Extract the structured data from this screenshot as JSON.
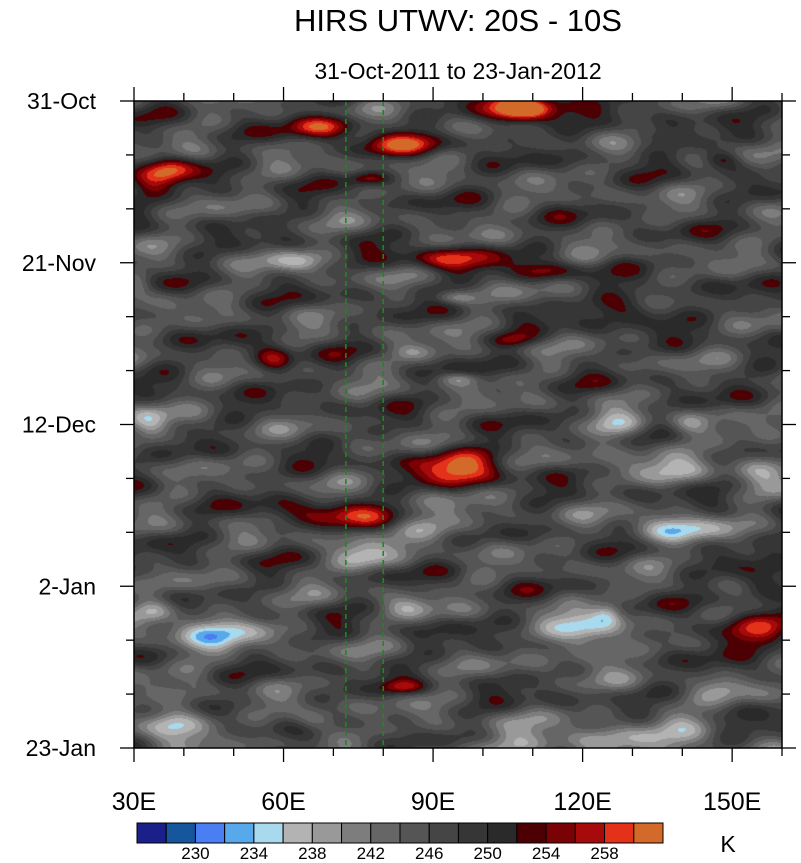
{
  "chart_data": {
    "type": "heatmap",
    "title": "HIRS UTWV: 20S - 10S",
    "subtitle": "31-Oct-2011 to 23-Jan-2012",
    "xlabel": "",
    "ylabel": "",
    "x_range": [
      30,
      160
    ],
    "x_ticks": [
      {
        "value": 30,
        "label": "30E"
      },
      {
        "value": 60,
        "label": "60E"
      },
      {
        "value": 90,
        "label": "90E"
      },
      {
        "value": 120,
        "label": "120E"
      },
      {
        "value": 150,
        "label": "150E"
      }
    ],
    "y_range_days": [
      0,
      84
    ],
    "y_ticks": [
      {
        "value": 0,
        "label": "31-Oct"
      },
      {
        "value": 21,
        "label": "21-Nov"
      },
      {
        "value": 42,
        "label": "12-Dec"
      },
      {
        "value": 63,
        "label": "2-Jan"
      },
      {
        "value": 84,
        "label": "23-Jan"
      }
    ],
    "reference_lines_lon": [
      72.5,
      80
    ],
    "colorbar": {
      "unit": "K",
      "levels": [
        228,
        230,
        232,
        234,
        236,
        238,
        240,
        242,
        244,
        246,
        248,
        250,
        252,
        254,
        256,
        258,
        260
      ],
      "colors": [
        "#1b1f8a",
        "#16569c",
        "#4a7ef2",
        "#58a8ec",
        "#a9d9ec",
        "#b3b3b3",
        "#999999",
        "#7d7d7d",
        "#666666",
        "#555555",
        "#454545",
        "#363636",
        "#2a2a2a",
        "#4c0004",
        "#7a0205",
        "#a70a0a",
        "#e4321a",
        "#d36a2a"
      ],
      "labels": [
        {
          "value": 230,
          "label": "230"
        },
        {
          "value": 234,
          "label": "234"
        },
        {
          "value": 238,
          "label": "238"
        },
        {
          "value": 242,
          "label": "242"
        },
        {
          "value": 246,
          "label": "246"
        },
        {
          "value": 250,
          "label": "250"
        },
        {
          "value": 254,
          "label": "254"
        },
        {
          "value": 258,
          "label": "258"
        }
      ]
    },
    "features": [
      {
        "lon": 108,
        "day": 1.0,
        "dlon": 8,
        "dday": 2.2,
        "value": 14
      },
      {
        "lon": 108,
        "day": 1.2,
        "dlon": 5,
        "dday": 1.3,
        "value": 7
      },
      {
        "lon": 68,
        "day": 3.2,
        "dlon": 7,
        "dday": 1.5,
        "value": 11
      },
      {
        "lon": 84,
        "day": 5.5,
        "dlon": 9,
        "dday": 1.5,
        "value": 9
      },
      {
        "lon": 37,
        "day": 8.8,
        "dlon": 5,
        "dday": 1.8,
        "value": 11
      },
      {
        "lon": 77,
        "day": 10.0,
        "dlon": 4,
        "dday": 0.9,
        "value": 7
      },
      {
        "lon": 148,
        "day": 7.5,
        "dlon": 4,
        "dday": 1.2,
        "value": 8
      },
      {
        "lon": 134,
        "day": 4.5,
        "dlon": 6,
        "dday": 1.2,
        "value": 5
      },
      {
        "lon": 93,
        "day": 20.5,
        "dlon": 10,
        "dday": 1.6,
        "value": 10
      },
      {
        "lon": 113,
        "day": 22.0,
        "dlon": 6,
        "dday": 1.3,
        "value": 7
      },
      {
        "lon": 130,
        "day": 27.0,
        "dlon": 8,
        "dday": 1.8,
        "value": 9
      },
      {
        "lon": 106,
        "day": 31.0,
        "dlon": 5,
        "dday": 1.0,
        "value": 6
      },
      {
        "lon": 58,
        "day": 33.5,
        "dlon": 4,
        "dday": 2.0,
        "value": 10
      },
      {
        "lon": 95,
        "day": 47.5,
        "dlon": 10,
        "dday": 2.5,
        "value": 12
      },
      {
        "lon": 70,
        "day": 53.5,
        "dlon": 12,
        "dday": 1.6,
        "value": 9
      },
      {
        "lon": 156,
        "day": 62.5,
        "dlon": 7,
        "dday": 2.0,
        "value": 8
      },
      {
        "lon": 152,
        "day": 69.0,
        "dlon": 10,
        "dday": 2.0,
        "value": 10
      },
      {
        "lon": 84,
        "day": 76.0,
        "dlon": 4,
        "dday": 0.8,
        "value": 6
      },
      {
        "lon": 33,
        "day": 11.0,
        "dlon": 5,
        "dday": 2.0,
        "value": 6
      },
      {
        "lon": 63,
        "day": 20.8,
        "dlon": 6,
        "dday": 1.5,
        "value": -7
      },
      {
        "lon": 30,
        "day": 24.0,
        "dlon": 3,
        "dday": 1.5,
        "value": -7
      },
      {
        "lon": 94,
        "day": 25.5,
        "dlon": 4,
        "dday": 0.8,
        "value": -6
      },
      {
        "lon": 86,
        "day": 32.5,
        "dlon": 5,
        "dday": 1.2,
        "value": -6
      },
      {
        "lon": 95,
        "day": 36.0,
        "dlon": 4,
        "dday": 0.8,
        "value": -6
      },
      {
        "lon": 33,
        "day": 42.0,
        "dlon": 4,
        "dday": 2.5,
        "value": -8
      },
      {
        "lon": 127,
        "day": 42.5,
        "dlon": 6,
        "dday": 2.0,
        "value": -8
      },
      {
        "lon": 141,
        "day": 42.0,
        "dlon": 4,
        "dday": 1.5,
        "value": -6
      },
      {
        "lon": 135,
        "day": 47.0,
        "dlon": 10,
        "dday": 2.5,
        "value": -6
      },
      {
        "lon": 155,
        "day": 47.5,
        "dlon": 6,
        "dday": 3.0,
        "value": -7
      },
      {
        "lon": 92,
        "day": 55.0,
        "dlon": 8,
        "dday": 2.5,
        "value": -7
      },
      {
        "lon": 75,
        "day": 59.0,
        "dlon": 6,
        "dday": 2.0,
        "value": -10
      },
      {
        "lon": 85,
        "day": 65.5,
        "dlon": 5,
        "dday": 1.5,
        "value": -6
      },
      {
        "lon": 138,
        "day": 55.5,
        "dlon": 9,
        "dday": 2.0,
        "value": -10
      },
      {
        "lon": 45,
        "day": 69.0,
        "dlon": 12,
        "dday": 3.0,
        "value": -9
      },
      {
        "lon": 34,
        "day": 66.0,
        "dlon": 4,
        "dday": 1.5,
        "value": -6
      },
      {
        "lon": 121,
        "day": 69.5,
        "dlon": 7,
        "dday": 3.5,
        "value": -12
      },
      {
        "lon": 125,
        "day": 66.5,
        "dlon": 3,
        "dday": 1.5,
        "value": -7
      },
      {
        "lon": 148,
        "day": 76.0,
        "dlon": 5,
        "dday": 1.5,
        "value": -5
      },
      {
        "lon": 37,
        "day": 80.5,
        "dlon": 7,
        "dday": 2.5,
        "value": -12
      },
      {
        "lon": 66,
        "day": 80.5,
        "dlon": 5,
        "dday": 1.5,
        "value": -9
      },
      {
        "lon": 118,
        "day": 84.0,
        "dlon": 25,
        "dday": 3.0,
        "value": -8
      },
      {
        "lon": 138,
        "day": 80.0,
        "dlon": 8,
        "dday": 2.0,
        "value": -5
      }
    ]
  }
}
